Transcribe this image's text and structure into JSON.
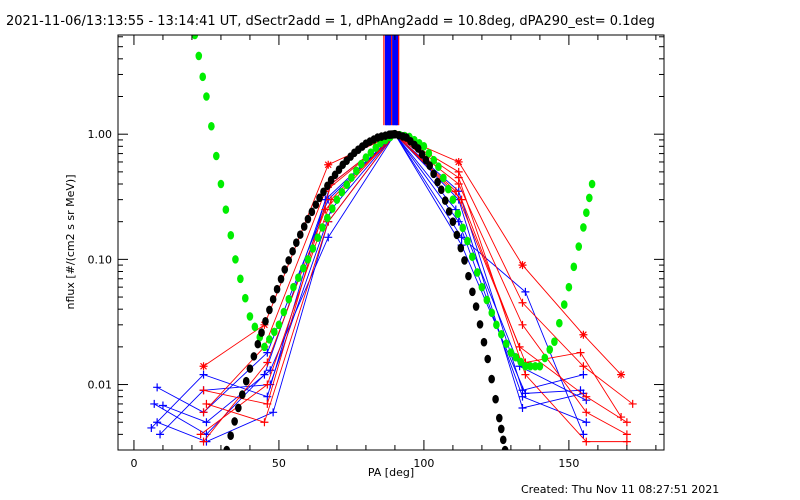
{
  "chart_data": {
    "type": "line",
    "title": "2021-11-06/13:13:55 - 13:14:41 UT, dSectr2add = 1, dPhAng2add = 10.8deg, dPA290_est=  0.1deg",
    "xlabel": "PA [deg]",
    "ylabel": "nflux [#/(cm2 s sr MeV)]",
    "xlim": [
      -5.5,
      182.8
    ],
    "ylim": [
      0.003,
      6.2
    ],
    "yscale": "log",
    "xticks": [
      {
        "v": 0,
        "label": "0"
      },
      {
        "v": 50,
        "label": "50"
      },
      {
        "v": 100,
        "label": "100"
      },
      {
        "v": 150,
        "label": "150"
      }
    ],
    "yticks": [
      {
        "v": 1,
        "label": "1.00"
      },
      {
        "v": 0.1,
        "label": "0.10"
      },
      {
        "v": 0.01,
        "label": "0.01"
      }
    ],
    "footer": "Created: Thu Nov 11 08:27:51 2021",
    "colors": {
      "blue": "#0000ff",
      "red": "#ff0000",
      "green": "#00ee00",
      "black": "#000000"
    },
    "pa_lines": [
      {
        "pa": 86.2,
        "color": "red"
      },
      {
        "pa": 86.9,
        "color": "blue"
      },
      {
        "pa": 87.4,
        "color": "blue"
      },
      {
        "pa": 87.9,
        "color": "blue"
      },
      {
        "pa": 88.4,
        "color": "blue"
      },
      {
        "pa": 88.9,
        "color": "red"
      },
      {
        "pa": 89.4,
        "color": "blue"
      },
      {
        "pa": 89.9,
        "color": "blue"
      },
      {
        "pa": 90.4,
        "color": "blue"
      },
      {
        "pa": 90.8,
        "color": "blue"
      },
      {
        "pa": 91.3,
        "color": "red"
      }
    ],
    "pa_lines_range": [
      1.18,
      6.2
    ],
    "series": [
      {
        "name": "blue-1",
        "color": "blue",
        "points": [
          [
            8,
            0.0095
          ],
          [
            24,
            0.006
          ],
          [
            46,
            0.018
          ],
          [
            67,
            0.3
          ],
          [
            90,
            1
          ],
          [
            112,
            0.35
          ],
          [
            134,
            0.009
          ],
          [
            155,
            0.012
          ]
        ]
      },
      {
        "name": "blue-2",
        "color": "blue",
        "points": [
          [
            7,
            0.007
          ],
          [
            25,
            0.004
          ],
          [
            45,
            0.012
          ],
          [
            68,
            0.4
          ],
          [
            90,
            1
          ],
          [
            112,
            0.2
          ],
          [
            134,
            0.008
          ],
          [
            156,
            0.005
          ]
        ]
      },
      {
        "name": "blue-3",
        "color": "blue",
        "points": [
          [
            9,
            0.004
          ],
          [
            24,
            0.009
          ],
          [
            47,
            0.01
          ],
          [
            68,
            0.25
          ],
          [
            90,
            1
          ],
          [
            113,
            0.13
          ],
          [
            135,
            0.0085
          ],
          [
            154,
            0.009
          ]
        ]
      },
      {
        "name": "blue-4",
        "color": "blue",
        "points": [
          [
            8,
            0.005
          ],
          [
            25,
            0.0035
          ],
          [
            48,
            0.006
          ],
          [
            67,
            0.2
          ],
          [
            90,
            1
          ],
          [
            111,
            0.25
          ],
          [
            133,
            0.014
          ],
          [
            156,
            0.0075
          ]
        ]
      },
      {
        "name": "blue-5",
        "color": "blue",
        "points": [
          [
            6,
            0.0045
          ],
          [
            24,
            0.012
          ],
          [
            46,
            0.008
          ],
          [
            66,
            0.3
          ],
          [
            90,
            1
          ],
          [
            112,
            0.3
          ],
          [
            134,
            0.0065
          ],
          [
            155,
            0.0085
          ]
        ]
      },
      {
        "name": "blue-6",
        "color": "blue",
        "points": [
          [
            10,
            0.0068
          ],
          [
            25,
            0.005
          ],
          [
            47,
            0.013
          ],
          [
            67,
            0.15
          ],
          [
            90,
            1
          ],
          [
            113,
            0.15
          ],
          [
            135,
            0.055
          ],
          [
            155,
            0.004
          ]
        ]
      },
      {
        "name": "red-1",
        "color": "red",
        "star": true,
        "points": [
          [
            24,
            0.014
          ],
          [
            45,
            0.03
          ],
          [
            67,
            0.57
          ],
          [
            90,
            1
          ],
          [
            112,
            0.6
          ],
          [
            134,
            0.09
          ],
          [
            155,
            0.025
          ],
          [
            168,
            0.012
          ]
        ]
      },
      {
        "name": "red-2",
        "color": "red",
        "points": [
          [
            24,
            0.006
          ],
          [
            45,
            0.02
          ],
          [
            66,
            0.35
          ],
          [
            90,
            1
          ],
          [
            112,
            0.5
          ],
          [
            134,
            0.045
          ],
          [
            155,
            0.014
          ],
          [
            172,
            0.007
          ]
        ]
      },
      {
        "name": "red-3",
        "color": "red",
        "points": [
          [
            23,
            0.004
          ],
          [
            46,
            0.01
          ],
          [
            68,
            0.3
          ],
          [
            90,
            1
          ],
          [
            111,
            0.35
          ],
          [
            133,
            0.02
          ],
          [
            156,
            0.008
          ],
          [
            170,
            0.005
          ]
        ]
      },
      {
        "name": "red-4",
        "color": "red",
        "points": [
          [
            25,
            0.007
          ],
          [
            45,
            0.005
          ],
          [
            67,
            0.2
          ],
          [
            90,
            1
          ],
          [
            112,
            0.4
          ],
          [
            134,
            0.03
          ],
          [
            156,
            0.006
          ],
          [
            170,
            0.004
          ]
        ]
      },
      {
        "name": "red-5",
        "color": "red",
        "points": [
          [
            24,
            0.0035
          ],
          [
            46,
            0.015
          ],
          [
            66,
            0.25
          ],
          [
            90,
            1
          ],
          [
            113,
            0.3
          ],
          [
            135,
            0.015
          ],
          [
            154,
            0.018
          ],
          [
            168,
            0.0055
          ]
        ]
      },
      {
        "name": "red-6",
        "color": "red",
        "points": [
          [
            24,
            0.009
          ],
          [
            46,
            0.007
          ],
          [
            68,
            0.4
          ],
          [
            90,
            1
          ],
          [
            112,
            0.45
          ],
          [
            135,
            0.012
          ],
          [
            156,
            0.0035
          ],
          [
            170,
            0.0035
          ]
        ]
      }
    ],
    "fit_curves": [
      {
        "name": "green-fit",
        "color": "green",
        "points": [
          [
            21,
            6.2
          ],
          [
            25,
            2
          ],
          [
            30,
            0.4
          ],
          [
            35,
            0.1
          ],
          [
            40,
            0.035
          ],
          [
            45,
            0.02
          ],
          [
            50,
            0.03
          ],
          [
            55,
            0.06
          ],
          [
            60,
            0.1
          ],
          [
            65,
            0.18
          ],
          [
            70,
            0.3
          ],
          [
            75,
            0.45
          ],
          [
            80,
            0.65
          ],
          [
            85,
            0.85
          ],
          [
            90,
            1
          ],
          [
            95,
            0.95
          ],
          [
            100,
            0.8
          ],
          [
            105,
            0.55
          ],
          [
            110,
            0.3
          ],
          [
            115,
            0.14
          ],
          [
            120,
            0.06
          ],
          [
            125,
            0.03
          ],
          [
            130,
            0.018
          ],
          [
            135,
            0.014
          ],
          [
            140,
            0.014
          ],
          [
            145,
            0.022
          ],
          [
            150,
            0.06
          ],
          [
            155,
            0.18
          ],
          [
            158,
            0.4
          ]
        ]
      },
      {
        "name": "black-fit",
        "color": "black",
        "points": [
          [
            32,
            0.003
          ],
          [
            36,
            0.0065
          ],
          [
            40,
            0.0134
          ],
          [
            44,
            0.026
          ],
          [
            48,
            0.048
          ],
          [
            52,
            0.083
          ],
          [
            56,
            0.136
          ],
          [
            60,
            0.21
          ],
          [
            64,
            0.31
          ],
          [
            68,
            0.43
          ],
          [
            72,
            0.57
          ],
          [
            76,
            0.71
          ],
          [
            80,
            0.84
          ],
          [
            84,
            0.94
          ],
          [
            88,
            0.99
          ],
          [
            90,
            1
          ],
          [
            94,
            0.94
          ],
          [
            98,
            0.77
          ],
          [
            102,
            0.56
          ],
          [
            106,
            0.36
          ],
          [
            110,
            0.2
          ],
          [
            114,
            0.098
          ],
          [
            118,
            0.042
          ],
          [
            122,
            0.016
          ],
          [
            126,
            0.0054
          ],
          [
            128,
            0.003
          ]
        ]
      }
    ]
  }
}
